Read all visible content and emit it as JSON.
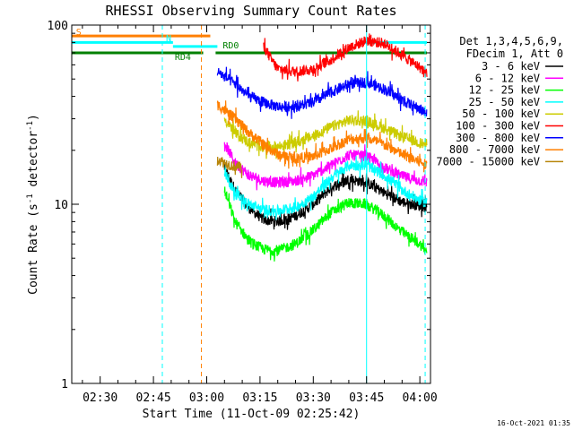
{
  "chart_data": {
    "type": "line",
    "title": "RHESSI Observing Summary Count Rates",
    "xlabel": "Start Time (11-Oct-09 02:25:42)",
    "ylabel_main": "Count Rate (s",
    "ylabel_sup1": "-1",
    "ylabel_mid": " detector",
    "ylabel_sup2": "-1",
    "ylabel_end": ")",
    "ylabel": "Count Rate (s^-1 detector^-1)",
    "y_scale": "log",
    "ylim": [
      1,
      100
    ],
    "xlim_minutes": [
      142,
      243
    ],
    "x_ticks": [
      {
        "m": 150,
        "label": "02:30"
      },
      {
        "m": 165,
        "label": "02:45"
      },
      {
        "m": 180,
        "label": "03:00"
      },
      {
        "m": 195,
        "label": "03:15"
      },
      {
        "m": 210,
        "label": "03:30"
      },
      {
        "m": 225,
        "label": "03:45"
      },
      {
        "m": 240,
        "label": "04:00"
      }
    ],
    "y_tick_labels": [
      {
        "v": 1,
        "label": "1"
      },
      {
        "v": 10,
        "label": "10"
      },
      {
        "v": 100,
        "label": "100"
      }
    ],
    "legend": {
      "position": "right",
      "header1": "Det 1,3,4,5,6,9,",
      "header2": "FDecim 1, Att 0",
      "entries": [
        {
          "label": "3 - 6 keV",
          "color": "#000000"
        },
        {
          "label": "6 - 12 keV",
          "color": "#ff00ff"
        },
        {
          "label": "12 - 25 keV",
          "color": "#00ff00"
        },
        {
          "label": "25 - 50 keV",
          "color": "#00ffff"
        },
        {
          "label": "50 - 100 keV",
          "color": "#cccc00"
        },
        {
          "label": "100 - 300 keV",
          "color": "#ff0000"
        },
        {
          "label": "300 - 800 keV",
          "color": "#0000ff"
        },
        {
          "label": "800 - 7000 keV",
          "color": "#ff7f00"
        },
        {
          "label": "7000 - 15000 keV",
          "color": "#b8860b"
        }
      ]
    },
    "series": [
      {
        "name": "3 - 6 keV",
        "color": "#000000",
        "start": 185,
        "end": 242,
        "x": [
          185,
          188,
          192,
          196,
          200,
          205,
          210,
          215,
          220,
          225,
          230,
          235,
          240,
          242
        ],
        "y": [
          16,
          12,
          9.5,
          8.2,
          8.0,
          8.6,
          10,
          12.4,
          13.8,
          13.2,
          11.6,
          10.3,
          9.8,
          9.7
        ]
      },
      {
        "name": "6 - 12 keV",
        "color": "#ff00ff",
        "start": 185,
        "end": 242,
        "x": [
          185,
          188,
          192,
          196,
          200,
          205,
          210,
          215,
          220,
          225,
          230,
          235,
          240,
          242
        ],
        "y": [
          22,
          17,
          14.5,
          13.5,
          13.2,
          13.5,
          14.5,
          16.5,
          18.8,
          18.6,
          16,
          14.3,
          13.5,
          13.3
        ]
      },
      {
        "name": "12 - 25 keV",
        "color": "#00ff00",
        "start": 185,
        "end": 242,
        "x": [
          185,
          188,
          192,
          196,
          200,
          205,
          210,
          215,
          220,
          225,
          230,
          235,
          240,
          242
        ],
        "y": [
          12,
          8.0,
          6.2,
          5.6,
          5.5,
          6.0,
          7.2,
          9.0,
          10.2,
          10.0,
          8.6,
          7.0,
          6.0,
          5.4
        ]
      },
      {
        "name": "25 - 50 keV",
        "color": "#00ffff",
        "start": 185,
        "end": 242,
        "x": [
          185,
          188,
          192,
          196,
          200,
          205,
          210,
          215,
          220,
          225,
          230,
          235,
          240,
          242
        ],
        "y": [
          15,
          11.5,
          10,
          9.3,
          9.2,
          9.6,
          11,
          14,
          16.5,
          16.5,
          14.5,
          12,
          10.5,
          10.2
        ]
      },
      {
        "name": "50 - 100 keV",
        "color": "#cccc00",
        "start": 185,
        "end": 242,
        "x": [
          185,
          188,
          192,
          196,
          200,
          205,
          210,
          215,
          220,
          225,
          230,
          235,
          240,
          242
        ],
        "y": [
          30,
          25,
          22,
          21,
          21,
          22,
          24,
          27,
          29.5,
          29.2,
          26.5,
          23.8,
          22,
          21.6
        ]
      },
      {
        "name": "100 - 300 keV",
        "color": "#ff0000",
        "start": 196,
        "end": 242,
        "x": [
          196,
          198,
          200,
          205,
          210,
          215,
          220,
          225,
          230,
          235,
          240,
          242
        ],
        "y": [
          77,
          65,
          57,
          55,
          57,
          64,
          75,
          82,
          79,
          68,
          58,
          54
        ]
      },
      {
        "name": "300 - 800 keV",
        "color": "#0000ff",
        "start": 183,
        "end": 242,
        "x": [
          183,
          188,
          192,
          196,
          200,
          205,
          210,
          215,
          220,
          225,
          230,
          235,
          240,
          242
        ],
        "y": [
          55,
          47,
          40,
          37,
          35,
          35,
          37,
          42,
          47,
          48,
          44,
          38,
          34,
          32
        ]
      },
      {
        "name": "800 - 7000 keV",
        "color": "#ff7f00",
        "start": 183,
        "end": 242,
        "x": [
          183,
          188,
          192,
          196,
          200,
          205,
          210,
          215,
          220,
          225,
          230,
          235,
          240,
          242
        ],
        "y": [
          36,
          30,
          25,
          21.5,
          19,
          18,
          18.5,
          20.5,
          23,
          23.5,
          21.5,
          19,
          17.2,
          16.5
        ]
      },
      {
        "name": "7000 - 15000 keV",
        "color": "#b8860b",
        "start": 183,
        "end": 190,
        "x": [
          183,
          185,
          187,
          190
        ],
        "y": [
          18,
          17,
          16.5,
          16
        ]
      }
    ],
    "flag_bars": [
      {
        "label": "S",
        "color": "#ff7f00",
        "value": 87,
        "start": 142,
        "end": 181
      },
      {
        "label": "N",
        "color": "#00ffff",
        "value": 80,
        "start": 142,
        "end": 170.5
      },
      {
        "label": "N",
        "color": "#00ffff",
        "value": 76,
        "start": 170.5,
        "end": 183
      },
      {
        "label": "N",
        "color": "#00ffff",
        "value": 80,
        "start": 224,
        "end": 242
      },
      {
        "label": "RD4",
        "color": "#008000",
        "value": 70,
        "start": 142,
        "end": 179
      },
      {
        "label": "RD0",
        "color": "#008000",
        "value": 70,
        "start": 182.5,
        "end": 242
      }
    ],
    "flag_labels": [
      {
        "text": "S",
        "color": "#ff7f00",
        "m": 143.2,
        "v": 88
      },
      {
        "text": "N",
        "color": "#00ffff",
        "m": 168.5,
        "v": 81.5
      },
      {
        "text": "RD4",
        "color": "#008000",
        "m": 171,
        "v": 64
      },
      {
        "text": "RD0",
        "color": "#008000",
        "m": 184.5,
        "v": 74
      }
    ],
    "vlines": [
      {
        "m": 167.5,
        "color": "#00ffff",
        "dash": true
      },
      {
        "m": 178.5,
        "color": "#ff7f00",
        "dash": true
      },
      {
        "m": 225.0,
        "color": "#00ffff",
        "dash": false
      },
      {
        "m": 241.5,
        "color": "#00ffff",
        "dash": true
      }
    ],
    "footer_date": "16-Oct-2021 01:35"
  }
}
